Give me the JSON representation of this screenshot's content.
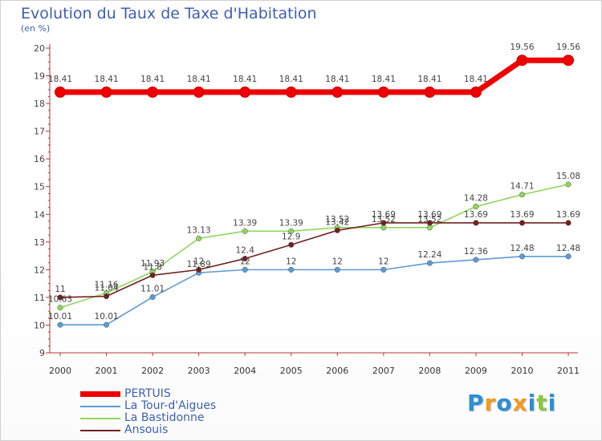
{
  "chart_data": {
    "type": "line",
    "title": "Evolution du Taux de Taxe d'Habitation",
    "subtitle": "(en %)",
    "ylim": [
      9,
      20
    ],
    "y_ticks": [
      9,
      10,
      11,
      12,
      13,
      14,
      15,
      16,
      17,
      18,
      19,
      20
    ],
    "grid": false,
    "legend_placement": "bottom-left",
    "categories": [
      "2000",
      "2001",
      "2002",
      "2003",
      "2004",
      "2005",
      "2006",
      "2007",
      "2008",
      "2009",
      "2010",
      "2011"
    ],
    "series": [
      {
        "name": "PERTUIS",
        "color": "#ee0000",
        "values": [
          18.41,
          18.41,
          18.41,
          18.41,
          18.41,
          18.41,
          18.41,
          18.41,
          18.41,
          18.41,
          19.56,
          19.56
        ],
        "labels": [
          "18.41",
          "18.41",
          "18.41",
          "18.41",
          "18.41",
          "18.41",
          "18.41",
          "18.41",
          "18.41",
          "18.41",
          "19.56",
          "19.56"
        ]
      },
      {
        "name": "La Tour-d'Aigues",
        "color": "#5b9bd5",
        "values": [
          10.01,
          10.01,
          11.01,
          11.89,
          12,
          12,
          12,
          12,
          12.24,
          12.36,
          12.48,
          12.48
        ],
        "labels": [
          "10.01",
          "10.01",
          "11.01",
          "11.89",
          "12",
          "12",
          "12",
          "12",
          "12.24",
          "12.36",
          "12.48",
          "12.48"
        ]
      },
      {
        "name": "La Bastidonne",
        "color": "#8fd65e",
        "values": [
          10.63,
          11.16,
          11.93,
          13.13,
          13.39,
          13.39,
          13.52,
          13.52,
          13.52,
          14.28,
          14.71,
          15.08
        ],
        "labels": [
          "10.63",
          "11.16",
          "11.93",
          "13.13",
          "13.39",
          "13.39",
          "13.52",
          "13.52",
          "13.52",
          "14.28",
          "14.71",
          "15.08"
        ]
      },
      {
        "name": "Ansouis",
        "color": "#722020",
        "values": [
          11,
          11.04,
          11.8,
          12,
          12.4,
          12.9,
          13.42,
          13.69,
          13.69,
          13.69,
          13.69,
          13.69
        ],
        "labels": [
          "11",
          "11.04",
          "11.8",
          "12",
          "12.4",
          "12.9",
          "13.42",
          "13.69",
          "13.69",
          "13.69",
          "13.69",
          "13.69"
        ]
      }
    ]
  },
  "logo": {
    "text": "Proxiti",
    "letters": [
      {
        "ch": "P",
        "color": "#2d8fd5"
      },
      {
        "ch": "r",
        "color": "#f29a1e"
      },
      {
        "ch": "o",
        "color": "#2d8fd5"
      },
      {
        "ch": "x",
        "color": "#f29a1e"
      },
      {
        "ch": "i",
        "color": "#2d8fd5"
      },
      {
        "ch": "t",
        "color": "#8cc63f"
      },
      {
        "ch": "i",
        "color": "#2d8fd5"
      }
    ]
  }
}
